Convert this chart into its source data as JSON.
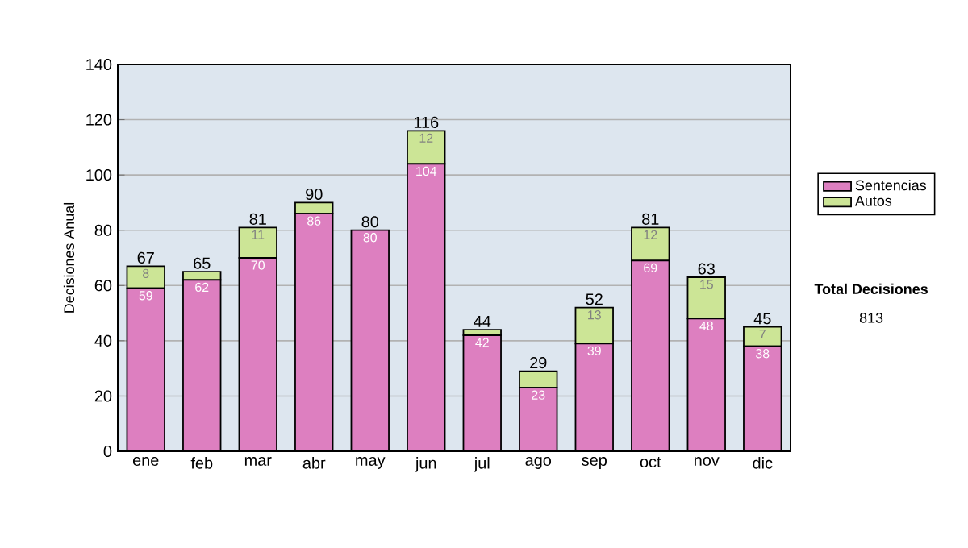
{
  "chart_data": {
    "type": "bar",
    "stacked": true,
    "ylabel": "Decisiones Anual",
    "categories": [
      "ene",
      "feb",
      "mar",
      "abr",
      "may",
      "jun",
      "jul",
      "ago",
      "sep",
      "oct",
      "nov",
      "dic"
    ],
    "series": [
      {
        "name": "Sentencias",
        "color": "#dd7fc0",
        "values": [
          59,
          62,
          70,
          86,
          80,
          104,
          42,
          23,
          39,
          69,
          48,
          38
        ],
        "value_labels": [
          "59",
          "62",
          "70",
          "86",
          "80",
          "104",
          "42",
          "23",
          "39",
          "69",
          "48",
          "38"
        ]
      },
      {
        "name": "Autos",
        "color": "#cce596",
        "values": [
          8,
          3,
          11,
          4,
          0,
          12,
          2,
          6,
          13,
          12,
          15,
          7
        ],
        "value_labels": [
          "8",
          null,
          "11",
          null,
          null,
          "12",
          null,
          null,
          "13",
          "12",
          "15",
          "7"
        ]
      }
    ],
    "totals": [
      "67",
      "65",
      "81",
      "90",
      "80",
      "116",
      "44",
      "29",
      "52",
      "81",
      "63",
      "45"
    ],
    "ylim": [
      0,
      140
    ],
    "yticks": [
      0,
      20,
      40,
      60,
      80,
      100,
      120,
      140
    ],
    "grid": "y",
    "legend": "right",
    "annotations": [
      "Total Decisiones",
      "813"
    ]
  }
}
